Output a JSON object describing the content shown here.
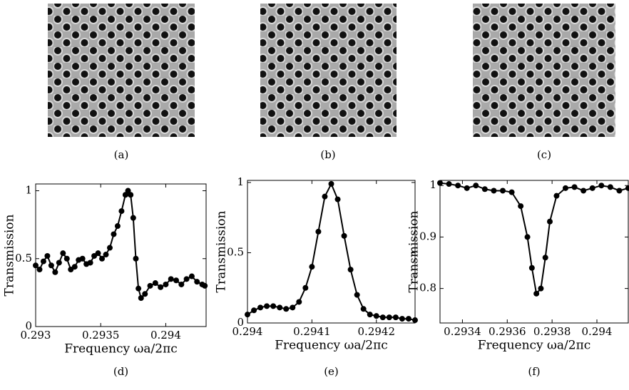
{
  "images": [
    {
      "label": "(a)"
    },
    {
      "label": "(b)"
    },
    {
      "label": "(c)"
    }
  ],
  "chart_data": [
    {
      "type": "line",
      "label": "(d)",
      "ylabel": "Transmission",
      "xlabel": "Frequency  ωa/2πc",
      "x": [
        0.293,
        0.29303,
        0.29306,
        0.29309,
        0.29312,
        0.29315,
        0.29318,
        0.29321,
        0.29324,
        0.29327,
        0.2933,
        0.29333,
        0.29336,
        0.29339,
        0.29342,
        0.29345,
        0.29348,
        0.29351,
        0.29354,
        0.29357,
        0.2936,
        0.29363,
        0.29366,
        0.29369,
        0.29371,
        0.29373,
        0.29375,
        0.29377,
        0.29379,
        0.29381,
        0.29384,
        0.29388,
        0.29392,
        0.29396,
        0.294,
        0.29404,
        0.29408,
        0.29412,
        0.29416,
        0.2942,
        0.29424,
        0.29428,
        0.2943
      ],
      "series": [
        {
          "color": "#000000",
          "values": [
            0.45,
            0.42,
            0.48,
            0.52,
            0.45,
            0.4,
            0.47,
            0.54,
            0.5,
            0.42,
            0.44,
            0.49,
            0.5,
            0.46,
            0.47,
            0.52,
            0.54,
            0.5,
            0.53,
            0.58,
            0.68,
            0.74,
            0.85,
            0.97,
            1.0,
            0.97,
            0.8,
            0.5,
            0.28,
            0.21,
            0.24,
            0.3,
            0.32,
            0.29,
            0.31,
            0.35,
            0.34,
            0.31,
            0.35,
            0.37,
            0.33,
            0.31,
            0.3
          ]
        }
      ],
      "xlim": [
        0.293,
        0.29431
      ],
      "ylim": [
        0,
        1.05
      ],
      "xticks": [
        0.293,
        0.2935,
        0.294
      ],
      "yticks": [
        0,
        0.5,
        1
      ]
    },
    {
      "type": "line",
      "label": "(e)",
      "ylabel": "Transmission",
      "xlabel": "Frequency  ωa/2πc",
      "x": [
        0.294,
        0.29401,
        0.29402,
        0.29403,
        0.29404,
        0.29405,
        0.29406,
        0.29407,
        0.29408,
        0.29409,
        0.2941,
        0.29411,
        0.29412,
        0.29413,
        0.29414,
        0.29415,
        0.29416,
        0.29417,
        0.29418,
        0.29419,
        0.2942,
        0.29421,
        0.29422,
        0.29423,
        0.29424,
        0.29425,
        0.29426
      ],
      "series": [
        {
          "color": "#000000",
          "values": [
            0.06,
            0.09,
            0.11,
            0.12,
            0.12,
            0.11,
            0.1,
            0.11,
            0.15,
            0.25,
            0.4,
            0.65,
            0.9,
            0.99,
            0.88,
            0.62,
            0.38,
            0.2,
            0.1,
            0.06,
            0.05,
            0.04,
            0.04,
            0.04,
            0.03,
            0.03,
            0.02
          ]
        }
      ],
      "xlim": [
        0.294,
        0.29426
      ],
      "ylim": [
        0,
        1.015
      ],
      "xticks": [
        0.294,
        0.2941,
        0.2942
      ],
      "yticks": [
        0,
        0.5,
        1
      ]
    },
    {
      "type": "line",
      "label": "(f)",
      "ylabel": "Transmission",
      "xlabel": "Frequency  ωa/2πc",
      "x": [
        0.2933,
        0.29334,
        0.29338,
        0.29342,
        0.29346,
        0.2935,
        0.29354,
        0.29358,
        0.29362,
        0.29366,
        0.29369,
        0.29371,
        0.29373,
        0.29375,
        0.29377,
        0.29379,
        0.29382,
        0.29386,
        0.2939,
        0.29394,
        0.29398,
        0.29402,
        0.29406,
        0.2941,
        0.29414
      ],
      "series": [
        {
          "color": "#000000",
          "values": [
            1.005,
            1.003,
            1.0,
            0.995,
            1.0,
            0.993,
            0.99,
            0.99,
            0.987,
            0.96,
            0.9,
            0.84,
            0.79,
            0.8,
            0.86,
            0.93,
            0.98,
            0.995,
            0.997,
            0.99,
            0.995,
            1.0,
            0.997,
            0.99,
            0.995
          ]
        }
      ],
      "xlim": [
        0.2933,
        0.29414
      ],
      "ylim": [
        0.733,
        1.01
      ],
      "xticks": [
        0.2934,
        0.2936,
        0.2938,
        0.294
      ],
      "yticks": [
        0.8,
        0.9,
        1
      ]
    }
  ]
}
